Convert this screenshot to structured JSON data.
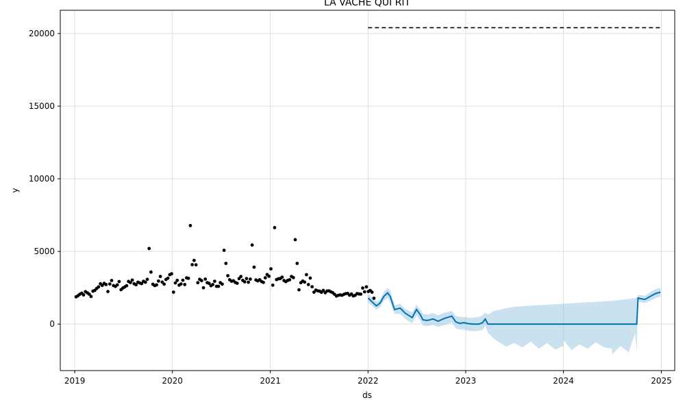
{
  "chart_data": {
    "type": "line",
    "title": "LA VACHE QUI RIT",
    "xlabel": "ds",
    "ylabel": "y",
    "x_tick_labels": [
      "2019",
      "2020",
      "2021",
      "2022",
      "2023",
      "2024",
      "2025"
    ],
    "y_tick_labels": [
      "0",
      "5000",
      "10000",
      "15000",
      "20000"
    ],
    "ylim": [
      -3200,
      21600
    ],
    "xlim": [
      "2018-11-08",
      "2025-02-20"
    ],
    "grid": true,
    "colors": {
      "observed": "#000000",
      "forecast_line": "#0072B2",
      "forecast_band": "#9ec9e2",
      "cap_line": "#000000",
      "grid": "#dddddd"
    },
    "cap": {
      "value": 20400,
      "x_start": "2022-01-01",
      "x_end": "2024-12-29",
      "style": "dashed"
    },
    "observed": [
      [
        "2019-01-06",
        1880
      ],
      [
        "2019-01-13",
        1950
      ],
      [
        "2019-01-20",
        2050
      ],
      [
        "2019-01-27",
        2130
      ],
      [
        "2019-02-03",
        2010
      ],
      [
        "2019-02-10",
        2230
      ],
      [
        "2019-02-17",
        2150
      ],
      [
        "2019-02-24",
        2060
      ],
      [
        "2019-03-03",
        1900
      ],
      [
        "2019-03-10",
        2270
      ],
      [
        "2019-03-17",
        2320
      ],
      [
        "2019-03-24",
        2450
      ],
      [
        "2019-03-31",
        2560
      ],
      [
        "2019-04-07",
        2780
      ],
      [
        "2019-04-14",
        2660
      ],
      [
        "2019-04-21",
        2800
      ],
      [
        "2019-04-28",
        2720
      ],
      [
        "2019-05-05",
        2240
      ],
      [
        "2019-05-12",
        2760
      ],
      [
        "2019-05-19",
        3000
      ],
      [
        "2019-05-26",
        2650
      ],
      [
        "2019-06-02",
        2590
      ],
      [
        "2019-06-09",
        2700
      ],
      [
        "2019-06-16",
        2930
      ],
      [
        "2019-06-23",
        2370
      ],
      [
        "2019-06-30",
        2480
      ],
      [
        "2019-07-07",
        2560
      ],
      [
        "2019-07-14",
        2640
      ],
      [
        "2019-07-21",
        2940
      ],
      [
        "2019-07-28",
        2860
      ],
      [
        "2019-08-04",
        3030
      ],
      [
        "2019-08-11",
        2780
      ],
      [
        "2019-08-18",
        2710
      ],
      [
        "2019-08-25",
        2880
      ],
      [
        "2019-09-01",
        2830
      ],
      [
        "2019-09-08",
        2790
      ],
      [
        "2019-09-15",
        2950
      ],
      [
        "2019-09-22",
        2880
      ],
      [
        "2019-09-29",
        3080
      ],
      [
        "2019-10-06",
        5200
      ],
      [
        "2019-10-13",
        3580
      ],
      [
        "2019-10-20",
        2740
      ],
      [
        "2019-10-27",
        2650
      ],
      [
        "2019-11-03",
        2700
      ],
      [
        "2019-11-10",
        2960
      ],
      [
        "2019-11-17",
        3280
      ],
      [
        "2019-11-24",
        2890
      ],
      [
        "2019-12-01",
        2750
      ],
      [
        "2019-12-08",
        3070
      ],
      [
        "2019-12-15",
        3160
      ],
      [
        "2019-12-22",
        3400
      ],
      [
        "2019-12-29",
        3460
      ],
      [
        "2020-01-05",
        2200
      ],
      [
        "2020-01-12",
        2830
      ],
      [
        "2020-01-19",
        3010
      ],
      [
        "2020-01-26",
        2680
      ],
      [
        "2020-02-02",
        2760
      ],
      [
        "2020-02-09",
        3020
      ],
      [
        "2020-02-16",
        2720
      ],
      [
        "2020-02-23",
        3180
      ],
      [
        "2020-03-01",
        3150
      ],
      [
        "2020-03-08",
        6780
      ],
      [
        "2020-03-15",
        4090
      ],
      [
        "2020-03-22",
        4380
      ],
      [
        "2020-03-29",
        4080
      ],
      [
        "2020-04-05",
        2850
      ],
      [
        "2020-04-12",
        3080
      ],
      [
        "2020-04-19",
        2990
      ],
      [
        "2020-04-26",
        2500
      ],
      [
        "2020-05-03",
        3100
      ],
      [
        "2020-05-10",
        2850
      ],
      [
        "2020-05-17",
        2800
      ],
      [
        "2020-05-24",
        2640
      ],
      [
        "2020-05-31",
        2720
      ],
      [
        "2020-06-07",
        2950
      ],
      [
        "2020-06-14",
        2600
      ],
      [
        "2020-06-21",
        2600
      ],
      [
        "2020-06-28",
        2850
      ],
      [
        "2020-07-05",
        2750
      ],
      [
        "2020-07-12",
        5080
      ],
      [
        "2020-07-19",
        4180
      ],
      [
        "2020-07-26",
        3330
      ],
      [
        "2020-08-02",
        3050
      ],
      [
        "2020-08-09",
        2950
      ],
      [
        "2020-08-16",
        2980
      ],
      [
        "2020-08-23",
        2870
      ],
      [
        "2020-08-30",
        2810
      ],
      [
        "2020-09-06",
        3130
      ],
      [
        "2020-09-13",
        3280
      ],
      [
        "2020-09-20",
        3010
      ],
      [
        "2020-09-27",
        2910
      ],
      [
        "2020-10-04",
        3130
      ],
      [
        "2020-10-11",
        2880
      ],
      [
        "2020-10-18",
        3100
      ],
      [
        "2020-10-25",
        5440
      ],
      [
        "2020-11-01",
        3920
      ],
      [
        "2020-11-08",
        3040
      ],
      [
        "2020-11-15",
        2970
      ],
      [
        "2020-11-22",
        3050
      ],
      [
        "2020-11-29",
        2930
      ],
      [
        "2020-12-06",
        2870
      ],
      [
        "2020-12-13",
        3190
      ],
      [
        "2020-12-20",
        3410
      ],
      [
        "2020-12-27",
        3290
      ],
      [
        "2021-01-03",
        3800
      ],
      [
        "2021-01-10",
        2680
      ],
      [
        "2021-01-17",
        6640
      ],
      [
        "2021-01-24",
        3060
      ],
      [
        "2021-01-31",
        3120
      ],
      [
        "2021-02-07",
        3130
      ],
      [
        "2021-02-14",
        3230
      ],
      [
        "2021-02-21",
        3000
      ],
      [
        "2021-02-28",
        2920
      ],
      [
        "2021-03-07",
        3010
      ],
      [
        "2021-03-14",
        3050
      ],
      [
        "2021-03-21",
        3280
      ],
      [
        "2021-03-28",
        3200
      ],
      [
        "2021-04-04",
        5810
      ],
      [
        "2021-04-11",
        4180
      ],
      [
        "2021-04-18",
        2360
      ],
      [
        "2021-04-25",
        2850
      ],
      [
        "2021-05-02",
        2960
      ],
      [
        "2021-05-09",
        2890
      ],
      [
        "2021-05-16",
        3400
      ],
      [
        "2021-05-23",
        2720
      ],
      [
        "2021-05-30",
        3170
      ],
      [
        "2021-06-06",
        2570
      ],
      [
        "2021-06-13",
        2200
      ],
      [
        "2021-06-20",
        2340
      ],
      [
        "2021-06-27",
        2290
      ],
      [
        "2021-07-04",
        2270
      ],
      [
        "2021-07-11",
        2190
      ],
      [
        "2021-07-18",
        2320
      ],
      [
        "2021-07-25",
        2160
      ],
      [
        "2021-08-01",
        2280
      ],
      [
        "2021-08-08",
        2290
      ],
      [
        "2021-08-15",
        2220
      ],
      [
        "2021-08-22",
        2160
      ],
      [
        "2021-08-29",
        2050
      ],
      [
        "2021-09-05",
        1930
      ],
      [
        "2021-09-12",
        1980
      ],
      [
        "2021-09-19",
        2010
      ],
      [
        "2021-09-26",
        1980
      ],
      [
        "2021-10-03",
        2050
      ],
      [
        "2021-10-10",
        2100
      ],
      [
        "2021-10-17",
        2110
      ],
      [
        "2021-10-24",
        1990
      ],
      [
        "2021-10-31",
        2070
      ],
      [
        "2021-11-07",
        1940
      ],
      [
        "2021-11-14",
        1980
      ],
      [
        "2021-11-21",
        2100
      ],
      [
        "2021-11-28",
        2070
      ],
      [
        "2021-12-05",
        2060
      ],
      [
        "2021-12-12",
        2480
      ],
      [
        "2021-12-19",
        2220
      ],
      [
        "2021-12-26",
        2560
      ],
      [
        "2022-01-02",
        2240
      ],
      [
        "2022-01-09",
        2310
      ],
      [
        "2022-01-16",
        2200
      ],
      [
        "2022-01-23",
        1780
      ]
    ],
    "forecast": {
      "x": [
        "2022-01-01",
        "2022-02-01",
        "2022-02-15",
        "2022-03-01",
        "2022-03-15",
        "2022-03-25",
        "2022-04-10",
        "2022-05-01",
        "2022-05-20",
        "2022-06-15",
        "2022-07-01",
        "2022-07-15",
        "2022-07-25",
        "2022-08-10",
        "2022-09-01",
        "2022-09-20",
        "2022-10-15",
        "2022-11-10",
        "2022-11-25",
        "2022-12-10",
        "2022-12-25",
        "2023-01-10",
        "2023-02-01",
        "2023-02-20",
        "2023-03-05",
        "2023-03-15",
        "2023-03-25",
        "2023-04-15",
        "2023-07-01",
        "2024-01-01",
        "2024-07-01",
        "2024-10-01",
        "2024-10-06",
        "2024-10-15",
        "2024-11-01",
        "2024-11-20",
        "2024-12-10",
        "2024-12-29"
      ],
      "yhat": [
        1800,
        1250,
        1450,
        1900,
        2150,
        1900,
        1000,
        1100,
        750,
        450,
        1000,
        650,
        300,
        250,
        350,
        200,
        400,
        550,
        150,
        50,
        100,
        30,
        0,
        0,
        100,
        350,
        0,
        0,
        0,
        0,
        0,
        0,
        1800,
        1750,
        1700,
        1900,
        2100,
        2200
      ],
      "lower": [
        1500,
        1000,
        1150,
        1600,
        1800,
        1500,
        700,
        700,
        350,
        50,
        600,
        250,
        -100,
        -150,
        -50,
        -200,
        -50,
        100,
        -300,
        -350,
        -400,
        -450,
        -500,
        -450,
        -400,
        -100,
        -600,
        -1000,
        -1300,
        -1500,
        -1700,
        -1900,
        1600,
        1500,
        1450,
        1600,
        1800,
        1900
      ],
      "upper": [
        2100,
        1550,
        1700,
        2200,
        2500,
        2300,
        1300,
        1400,
        1050,
        800,
        1350,
        1000,
        700,
        650,
        750,
        600,
        800,
        900,
        550,
        500,
        500,
        450,
        450,
        500,
        600,
        800,
        650,
        900,
        1200,
        1400,
        1600,
        1800,
        2000,
        2000,
        1950,
        2200,
        2400,
        2500
      ]
    },
    "forecast_band_dips": [
      [
        "2023-05-01",
        -1200
      ],
      [
        "2023-06-01",
        -1550
      ],
      [
        "2023-07-01",
        -1300
      ],
      [
        "2023-08-01",
        -1600
      ],
      [
        "2023-09-01",
        -1200
      ],
      [
        "2023-10-01",
        -1700
      ],
      [
        "2023-11-01",
        -1300
      ],
      [
        "2023-12-01",
        -1750
      ],
      [
        "2024-01-01",
        -1100
      ],
      [
        "2024-02-01",
        -1800
      ],
      [
        "2024-03-01",
        -1400
      ],
      [
        "2024-04-01",
        -1700
      ],
      [
        "2024-05-01",
        -1250
      ],
      [
        "2024-06-01",
        -1600
      ],
      [
        "2024-07-01",
        -2100
      ],
      [
        "2024-08-01",
        -1500
      ],
      [
        "2024-09-01",
        -1950
      ],
      [
        "2024-09-25",
        -600
      ]
    ]
  }
}
